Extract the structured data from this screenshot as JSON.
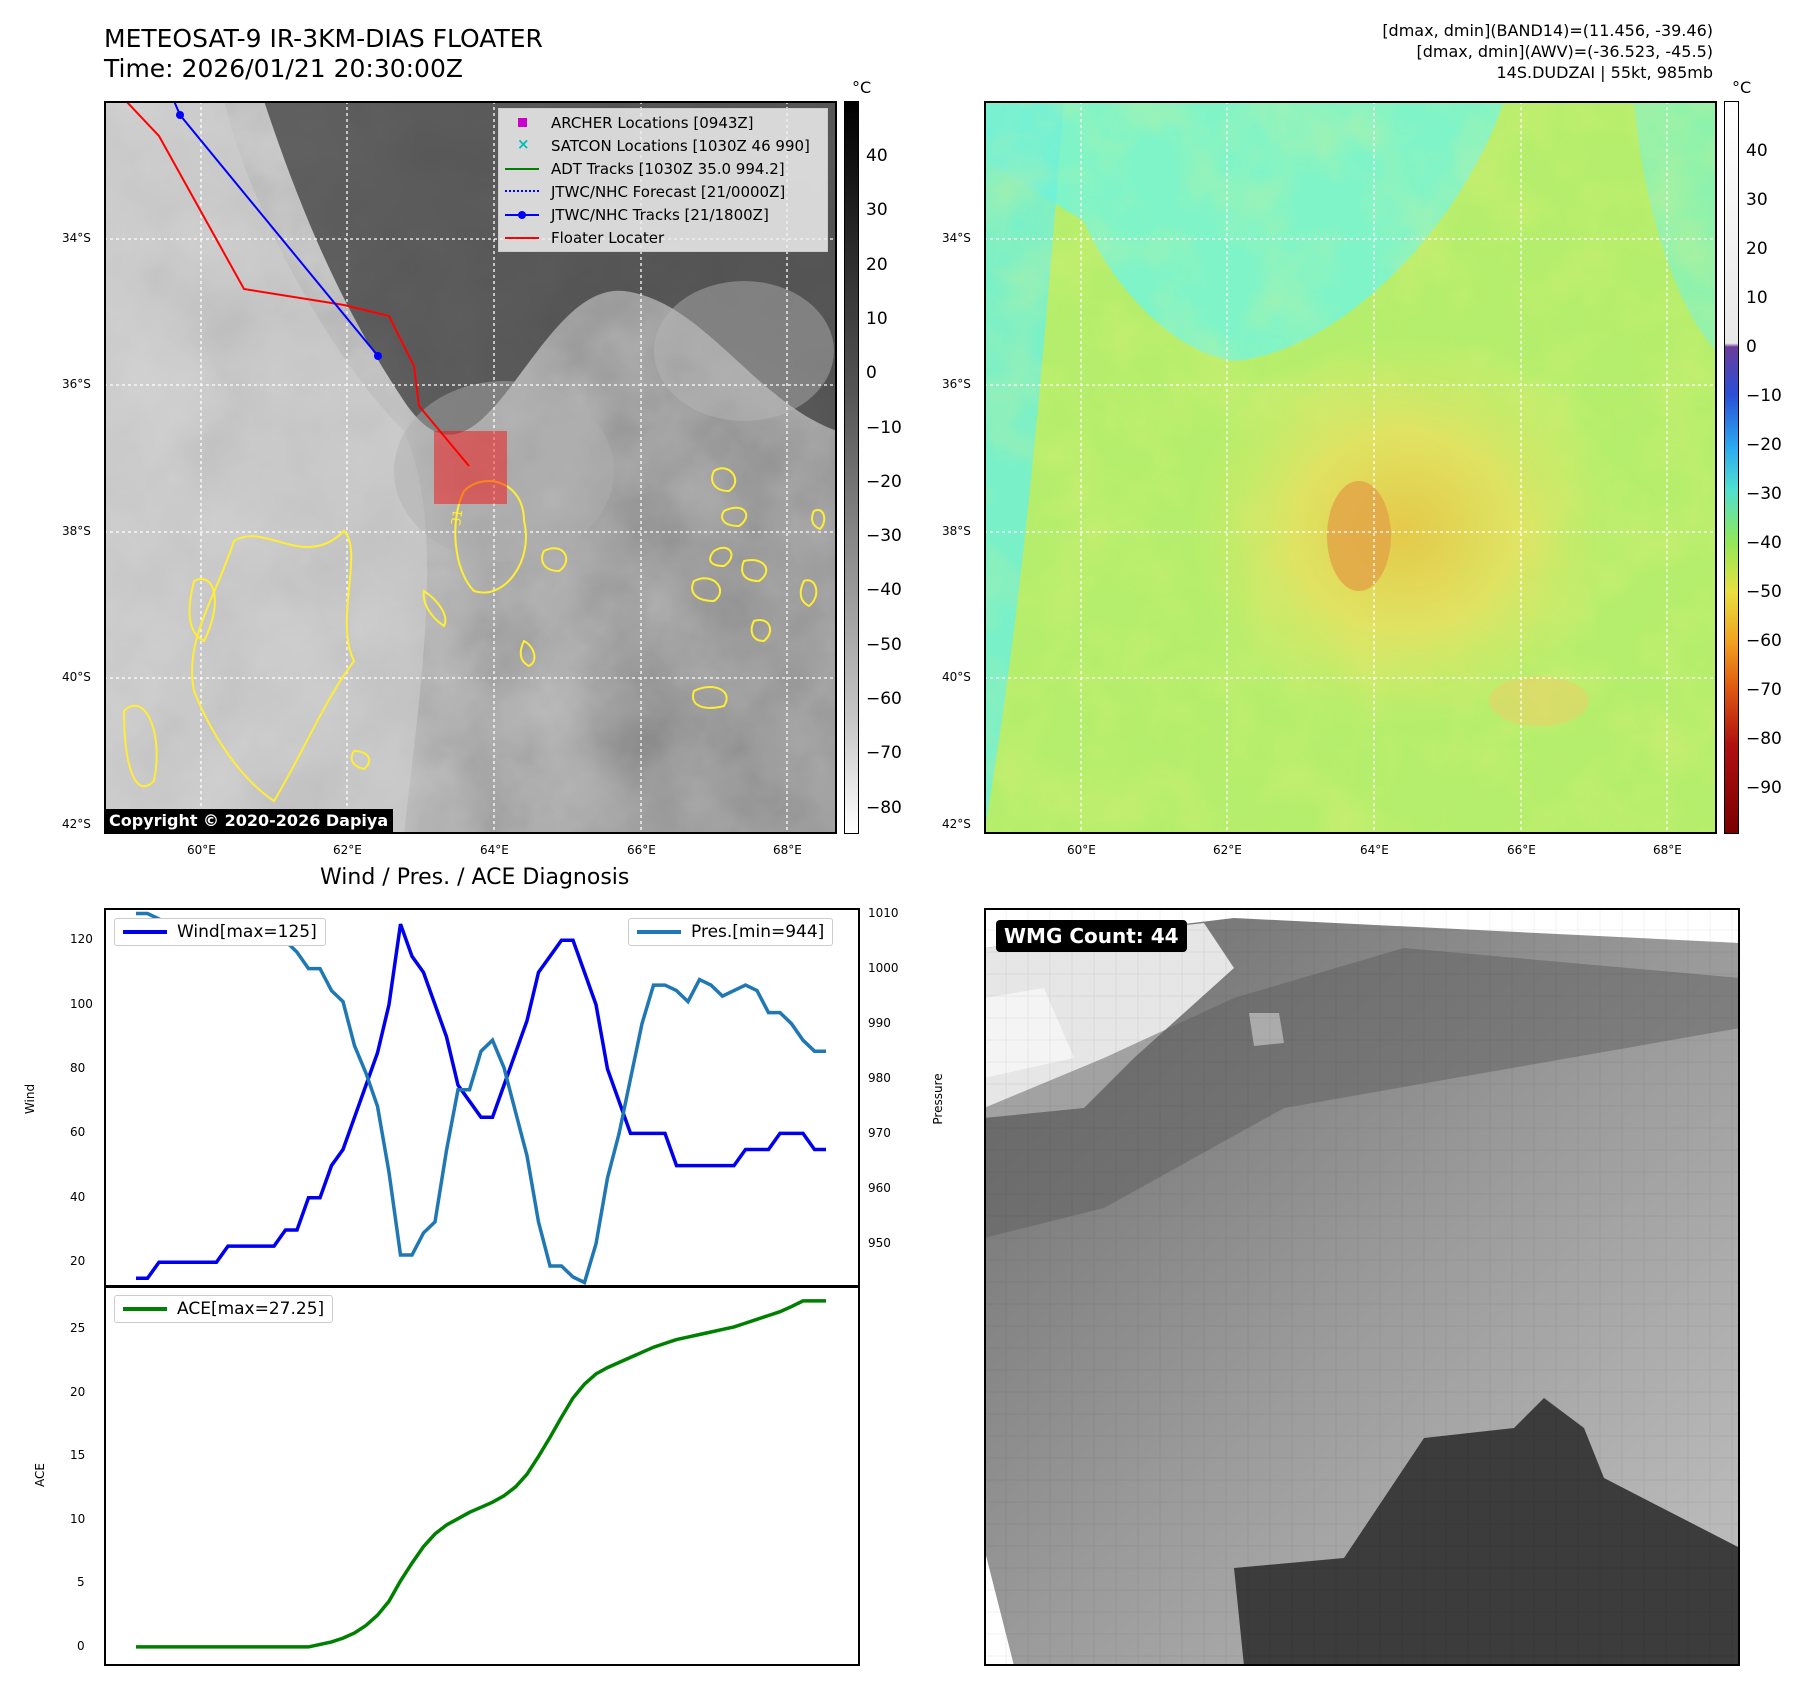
{
  "header": {
    "title_line1": "METEOSAT-9 IR-3KM-DIAS FLOATER",
    "title_line2": "Time: 2026/01/21 20:30:00Z",
    "info_line1": "[dmax, dmin](BAND14)=(11.456, -39.46)",
    "info_line2": "[dmax, dmin](AWV)=(-36.523, -45.5)",
    "info_line3": "14S.DUDZAI | 55kt, 985mb"
  },
  "ir_panel": {
    "lat_labels": [
      "34°S",
      "36°S",
      "38°S",
      "40°S",
      "42°S"
    ],
    "lon_labels": [
      "60°E",
      "62°E",
      "64°E",
      "66°E",
      "68°E"
    ],
    "contour_label": "-31",
    "copyright": "Copyright © 2020-2026 Dapiya",
    "legend": [
      {
        "label": "ARCHER Locations [0943Z]",
        "color": "#cc00cc",
        "marker": "square"
      },
      {
        "label": "SATCON Locations [1030Z 46 990]",
        "color": "#00bbbb",
        "marker": "x"
      },
      {
        "label": "ADT Tracks [1030Z 35.0 994.2]",
        "color": "#008000",
        "marker": "line"
      },
      {
        "label": "JTWC/NHC Forecast [21/0000Z]",
        "color": "#0000ff",
        "marker": "dotted"
      },
      {
        "label": "JTWC/NHC Tracks [21/1800Z]",
        "color": "#0000ff",
        "marker": "dotline"
      },
      {
        "label": "Floater Locater",
        "color": "#ff0000",
        "marker": "line"
      }
    ],
    "colorbar_unit": "°C",
    "colorbar_ticks": [
      "40",
      "30",
      "20",
      "10",
      "0",
      "−10",
      "−20",
      "−30",
      "−40",
      "−50",
      "−60",
      "−70",
      "−80"
    ]
  },
  "wv_panel": {
    "lat_labels": [
      "34°S",
      "36°S",
      "38°S",
      "40°S",
      "42°S"
    ],
    "lon_labels": [
      "60°E",
      "62°E",
      "64°E",
      "66°E",
      "68°E"
    ],
    "colorbar_unit": "°C",
    "colorbar_ticks": [
      "40",
      "30",
      "20",
      "10",
      "0",
      "−10",
      "−20",
      "−30",
      "−40",
      "−50",
      "−60",
      "−70",
      "−80",
      "−90"
    ]
  },
  "diagnosis": {
    "title": "Wind / Pres. / ACE Diagnosis",
    "wind_legend": "Wind[max=125]",
    "pres_legend": "Pres.[min=944]",
    "ace_legend": "ACE[max=27.25]",
    "wind_axis_label": "Wind",
    "pres_axis_label": "Pressure",
    "ace_axis_label": "ACE",
    "wind_ticks": [
      "120",
      "100",
      "80",
      "60",
      "40",
      "20"
    ],
    "pres_ticks": [
      "1010",
      "1000",
      "990",
      "980",
      "970",
      "960",
      "950"
    ],
    "ace_ticks": [
      "25",
      "20",
      "15",
      "10",
      "5",
      "0"
    ]
  },
  "wmg_panel": {
    "label": "WMG Count: 44"
  },
  "colors": {
    "wind": "#0000ee",
    "pressure": "#1f77b4",
    "ace": "#008000",
    "contour": "#ffee33",
    "track_red": "#ff0000",
    "track_blue": "#0000ff"
  },
  "chart_data": [
    {
      "type": "line",
      "series": [
        {
          "name": "Wind[max=125]",
          "axis": "left",
          "values": [
            15,
            15,
            20,
            20,
            20,
            20,
            20,
            20,
            25,
            25,
            25,
            25,
            25,
            30,
            30,
            40,
            40,
            50,
            55,
            65,
            75,
            85,
            100,
            125,
            115,
            110,
            100,
            90,
            75,
            70,
            65,
            65,
            75,
            85,
            95,
            110,
            115,
            120,
            120,
            110,
            100,
            80,
            70,
            60,
            60,
            60,
            60,
            50,
            50,
            50,
            50,
            50,
            50,
            55,
            55,
            55,
            60,
            60,
            60,
            55,
            55
          ]
        },
        {
          "name": "Pres.[min=944]",
          "axis": "right",
          "values": [
            1010,
            1010,
            1009,
            1007,
            1007,
            1007,
            1007,
            1007,
            1007,
            1007,
            1007,
            1007,
            1006,
            1005,
            1003,
            1000,
            1000,
            996,
            994,
            986,
            981,
            975,
            963,
            948,
            948,
            952,
            954,
            967,
            978,
            978,
            985,
            987,
            982,
            974,
            966,
            954,
            946,
            946,
            944,
            943,
            950,
            962,
            970,
            980,
            990,
            997,
            997,
            996,
            994,
            998,
            997,
            995,
            996,
            997,
            996,
            992,
            992,
            990,
            987,
            985,
            985
          ],
          "ylim": [
            942,
            1011
          ]
        }
      ],
      "ylabel": "Wind",
      "y2label": "Pressure",
      "ylim": [
        12,
        130
      ]
    },
    {
      "type": "area",
      "series": [
        {
          "name": "ACE[max=27.25]",
          "values": [
            0,
            0,
            0,
            0,
            0,
            0,
            0,
            0,
            0,
            0,
            0,
            0,
            0,
            0,
            0,
            0,
            0.2,
            0.4,
            0.7,
            1.1,
            1.7,
            2.5,
            3.6,
            5.2,
            6.6,
            7.9,
            8.9,
            9.6,
            10.1,
            10.6,
            11.0,
            11.4,
            11.9,
            12.6,
            13.6,
            15.0,
            16.5,
            18.1,
            19.6,
            20.7,
            21.5,
            22.0,
            22.4,
            22.8,
            23.2,
            23.6,
            23.9,
            24.2,
            24.4,
            24.6,
            24.8,
            25.0,
            25.2,
            25.5,
            25.8,
            26.1,
            26.4,
            26.8,
            27.25,
            27.25,
            27.25
          ]
        }
      ],
      "ylabel": "ACE",
      "ylim": [
        -1.5,
        28.5
      ]
    }
  ]
}
